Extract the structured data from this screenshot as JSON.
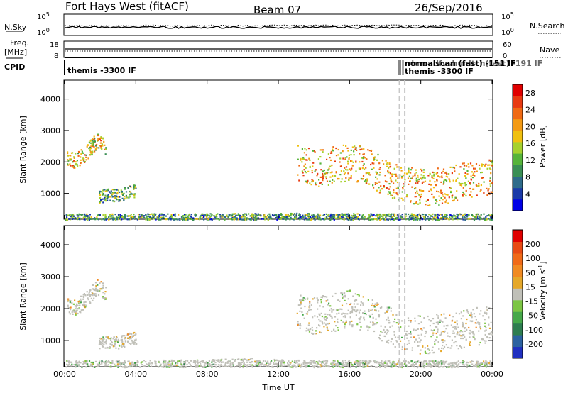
{
  "header": {
    "station": "Fort Hays West (fitACF)",
    "beam": "Beam 07",
    "date": "26/Sep/2016"
  },
  "top_panels": {
    "nsky_label": "N.Sky",
    "nsky_ticks": [
      "10^5",
      "10^0"
    ],
    "nsearch_label": "N.Search",
    "nsearch_ticks": [
      "10^5",
      "10^0"
    ],
    "freq_label_line1": "Freq.",
    "freq_label_line2": "[MHz]",
    "freq_ticks": [
      "18",
      "8"
    ],
    "nave_label": "Nave",
    "nave_ticks": [
      "60",
      "0"
    ],
    "cpid_label": "CPID",
    "cpid_text_1": "themis -3300 IF",
    "cpid_text_2": "themis -3300 IF",
    "cpid_text_overlap": "normalscan (fast) -151 IF",
    "cpid_text_right": "rbnoadfvshuidtch(fast)   -191 IF"
  },
  "colors": {
    "power_scale": [
      "#0000e6",
      "#1a3aa8",
      "#2e6b8a",
      "#3a8f55",
      "#56b43a",
      "#a6d12e",
      "#f0c010",
      "#f39a14",
      "#f06a14",
      "#e83a12",
      "#e00000"
    ],
    "velocity_scale": [
      "#2030c0",
      "#2c62a0",
      "#2e7d50",
      "#46a84a",
      "#7cc544",
      "#c0c0b8",
      "#e5a82a",
      "#f08a22",
      "#f06a18",
      "#e84a14",
      "#e00000"
    ],
    "ground_scatter": "#c0c0b8",
    "dashed_line": "#c8c8c8"
  },
  "chart_data": [
    {
      "type": "heatmap",
      "panel": "power",
      "xlabel": "",
      "ylabel": "Slant Range [km]",
      "x_ticks": [
        "00:00",
        "04:00",
        "08:00",
        "12:00",
        "16:00",
        "20:00",
        "00:00"
      ],
      "x_range_hours": [
        0,
        24
      ],
      "y_ticks": [
        1000,
        2000,
        3000,
        4000
      ],
      "ylim": [
        180,
        4600
      ],
      "colorbar_label": "Power [dB]",
      "colorbar_ticks": [
        4,
        8,
        12,
        16,
        20,
        24,
        28
      ],
      "colorbar_range": [
        0,
        30
      ],
      "dashed_lines_hours": [
        18.8,
        19.1
      ],
      "features": [
        {
          "desc": "echo band",
          "t": [
            0.1,
            0.6,
            1.2,
            1.8,
            2.3
          ],
          "range_km": [
            2100,
            2050,
            2300,
            2700,
            2500
          ],
          "width_km": 250,
          "power_db": 18
        },
        {
          "desc": "echo band",
          "t": [
            1.9,
            2.4,
            3.0,
            3.5,
            4.0
          ],
          "range_km": [
            900,
            980,
            950,
            1050,
            1100
          ],
          "width_km": 200,
          "power_db": 11
        },
        {
          "desc": "echo band",
          "t": [
            13.0,
            14.0,
            15.0,
            16.0,
            17.0,
            18.0,
            19.0,
            20.0,
            21.0,
            22.0,
            23.0,
            24.0
          ],
          "range_km": [
            2000,
            1800,
            1900,
            2000,
            1900,
            1500,
            1300,
            1200,
            1250,
            1350,
            1450,
            1500
          ],
          "width_km": 600,
          "power_db": 19
        },
        {
          "desc": "near-range band",
          "t": [
            0.0,
            4.0,
            8.0,
            12.0,
            16.0,
            20.0,
            24.0
          ],
          "range_km": [
            250,
            250,
            260,
            270,
            260,
            250,
            250
          ],
          "width_km": 120,
          "power_db": 10
        }
      ]
    },
    {
      "type": "heatmap",
      "panel": "velocity",
      "xlabel": "Time UT",
      "ylabel": "Slant Range [km]",
      "x_ticks": [
        "00:00",
        "04:00",
        "08:00",
        "12:00",
        "16:00",
        "20:00",
        "00:00"
      ],
      "x_range_hours": [
        0,
        24
      ],
      "y_ticks": [
        1000,
        2000,
        3000,
        4000
      ],
      "ylim": [
        180,
        4600
      ],
      "colorbar_label": "Velocity [m s^-1]",
      "colorbar_ticks": [
        -200,
        -100,
        -50,
        -15,
        15,
        50,
        100,
        200
      ],
      "colorbar_range": [
        -250,
        250
      ],
      "dashed_lines_hours": [
        18.8,
        19.1
      ],
      "features": [
        {
          "desc": "mostly ground scatter",
          "t": [
            0.1,
            0.6,
            1.2,
            1.8,
            2.3
          ],
          "range_km": [
            2100,
            2050,
            2300,
            2700,
            2500
          ],
          "width_km": 250,
          "velocity": 0
        },
        {
          "desc": "mostly ground scatter",
          "t": [
            1.9,
            2.4,
            3.0,
            3.5,
            4.0
          ],
          "range_km": [
            900,
            980,
            950,
            1050,
            1100
          ],
          "width_km": 200,
          "velocity": 0
        },
        {
          "desc": "mostly ground scatter",
          "t": [
            13.0,
            14.0,
            15.0,
            16.0,
            17.0,
            18.0,
            19.0,
            20.0,
            21.0,
            22.0,
            23.0,
            24.0
          ],
          "range_km": [
            2000,
            1800,
            1900,
            2000,
            1900,
            1500,
            1300,
            1200,
            1250,
            1350,
            1450,
            1500
          ],
          "width_km": 600,
          "velocity": 0
        },
        {
          "desc": "near-range band, negative velocities",
          "t": [
            0.0,
            4.0,
            8.0,
            10.5,
            12.0,
            16.0,
            20.0,
            24.0
          ],
          "range_km": [
            250,
            260,
            280,
            330,
            280,
            260,
            250,
            250
          ],
          "width_km": 140,
          "velocity": -40
        }
      ]
    }
  ]
}
